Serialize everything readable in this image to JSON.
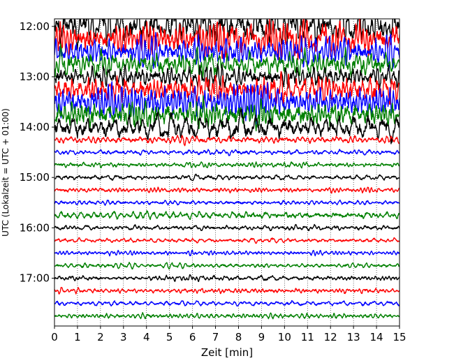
{
  "chart_data": {
    "type": "line",
    "title": "",
    "xlabel": "Zeit  [min]",
    "ylabel": "UTC (Lokalzeit = UTC + 01:00)",
    "xlim": [
      0,
      15
    ],
    "x_ticks": [
      0,
      1,
      2,
      3,
      4,
      5,
      6,
      7,
      8,
      9,
      10,
      11,
      12,
      13,
      14,
      15
    ],
    "y_tick_labels": [
      "12:00",
      "13:00",
      "14:00",
      "15:00",
      "16:00",
      "17:00"
    ],
    "y_tick_hours": [
      12,
      13,
      14,
      15,
      16,
      17
    ],
    "hour_range": [
      11.85,
      17.95
    ],
    "trace_interval_min": 15,
    "grid": "vertical-dotted",
    "legend": "none",
    "color_cycle": [
      "#000000",
      "#ff0000",
      "#0000ff",
      "#008000"
    ],
    "traces": [
      {
        "start": "12:00",
        "color": "#000000",
        "amplitude": 0.55
      },
      {
        "start": "12:15",
        "color": "#ff0000",
        "amplitude": 0.55
      },
      {
        "start": "12:30",
        "color": "#0000ff",
        "amplitude": 0.45
      },
      {
        "start": "12:45",
        "color": "#008000",
        "amplitude": 0.4
      },
      {
        "start": "13:00",
        "color": "#000000",
        "amplitude": 0.35
      },
      {
        "start": "13:15",
        "color": "#ff0000",
        "amplitude": 0.5
      },
      {
        "start": "13:30",
        "color": "#0000ff",
        "amplitude": 0.5
      },
      {
        "start": "13:45",
        "color": "#008000",
        "amplitude": 0.5
      },
      {
        "start": "14:00",
        "color": "#000000",
        "amplitude": 0.4
      },
      {
        "start": "14:15",
        "color": "#ff0000",
        "amplitude": 0.12
      },
      {
        "start": "14:30",
        "color": "#0000ff",
        "amplitude": 0.08
      },
      {
        "start": "14:45",
        "color": "#008000",
        "amplitude": 0.08
      },
      {
        "start": "15:00",
        "color": "#000000",
        "amplitude": 0.08
      },
      {
        "start": "15:15",
        "color": "#ff0000",
        "amplitude": 0.08
      },
      {
        "start": "15:30",
        "color": "#0000ff",
        "amplitude": 0.08
      },
      {
        "start": "15:45",
        "color": "#008000",
        "amplitude": 0.12
      },
      {
        "start": "16:00",
        "color": "#000000",
        "amplitude": 0.08
      },
      {
        "start": "16:15",
        "color": "#ff0000",
        "amplitude": 0.07
      },
      {
        "start": "16:30",
        "color": "#0000ff",
        "amplitude": 0.07
      },
      {
        "start": "16:45",
        "color": "#008000",
        "amplitude": 0.08
      },
      {
        "start": "17:00",
        "color": "#000000",
        "amplitude": 0.08
      },
      {
        "start": "17:15",
        "color": "#ff0000",
        "amplitude": 0.08
      },
      {
        "start": "17:30",
        "color": "#0000ff",
        "amplitude": 0.08
      },
      {
        "start": "17:45",
        "color": "#008000",
        "amplitude": 0.08
      }
    ]
  }
}
